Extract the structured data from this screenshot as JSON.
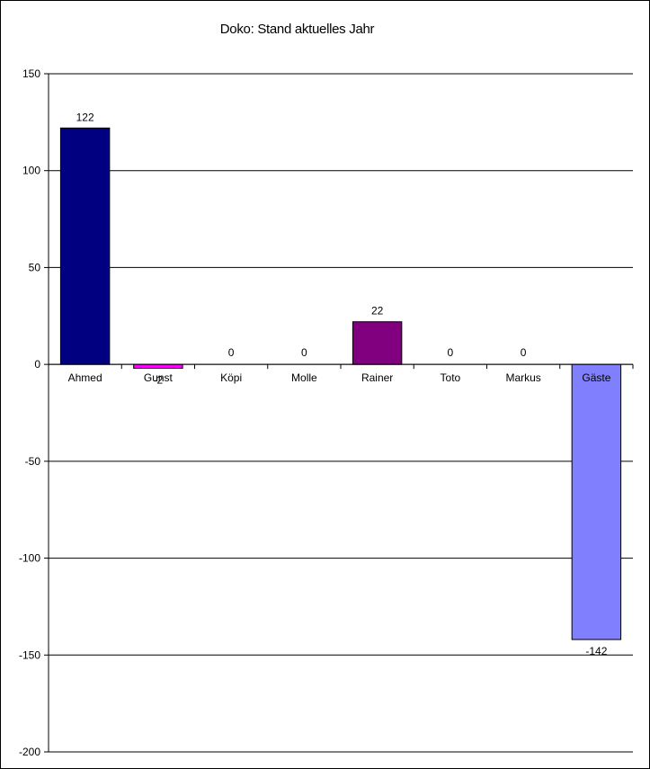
{
  "chart_data": {
    "type": "bar",
    "title": "Doko: Stand aktuelles Jahr",
    "categories": [
      "Ahmed",
      "Gunst",
      "Köpi",
      "Molle",
      "Rainer",
      "Toto",
      "Markus",
      "Gäste"
    ],
    "values": [
      122,
      -2,
      0,
      0,
      22,
      0,
      0,
      -142
    ],
    "data_labels": [
      "122",
      "-2",
      "0",
      "0",
      "22",
      "0",
      "0",
      "-142"
    ],
    "colors": [
      "#000080",
      "#ff00ff",
      "#000080",
      "#000080",
      "#800080",
      "#000080",
      "#000080",
      "#8080ff"
    ],
    "ylim": [
      -200,
      150
    ],
    "yticks": [
      150,
      100,
      50,
      0,
      -50,
      -100,
      -150,
      -200
    ],
    "xlabel": "",
    "ylabel": "",
    "grid": true,
    "legend": "none"
  }
}
